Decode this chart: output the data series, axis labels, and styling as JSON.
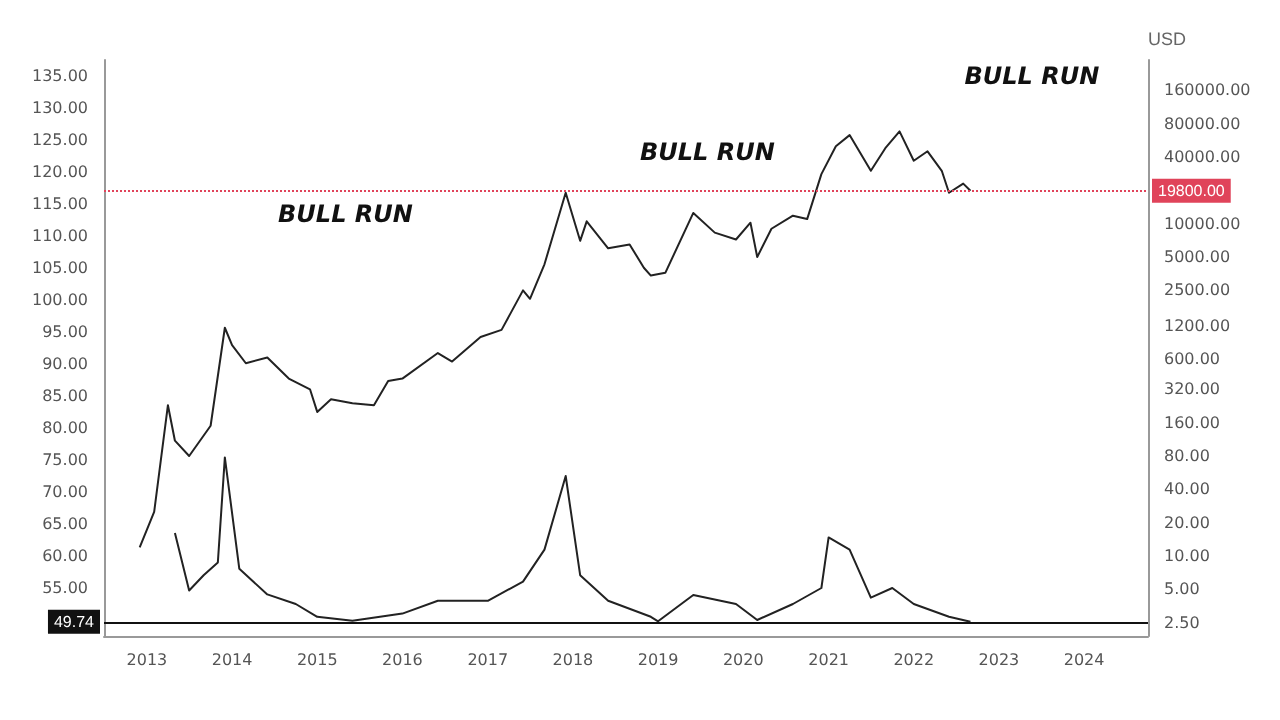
{
  "chart_data": {
    "type": "line",
    "y2label": "USD",
    "xlim": [
      "2012-07",
      "2024-10"
    ],
    "xticks": [
      "2013",
      "2014",
      "2015",
      "2016",
      "2017",
      "2018",
      "2019",
      "2020",
      "2021",
      "2022",
      "2023",
      "2024"
    ],
    "ylim": [
      47.5,
      137.5
    ],
    "yticks": [
      {
        "value": 55,
        "label": "55.00"
      },
      {
        "value": 60,
        "label": "60.00"
      },
      {
        "value": 65,
        "label": "65.00"
      },
      {
        "value": 70,
        "label": "70.00"
      },
      {
        "value": 75,
        "label": "75.00"
      },
      {
        "value": 80,
        "label": "80.00"
      },
      {
        "value": 85,
        "label": "85.00"
      },
      {
        "value": 90,
        "label": "90.00"
      },
      {
        "value": 95,
        "label": "95.00"
      },
      {
        "value": 100,
        "label": "100.00"
      },
      {
        "value": 105,
        "label": "105.00"
      },
      {
        "value": 110,
        "label": "110.00"
      },
      {
        "value": 115,
        "label": "115.00"
      },
      {
        "value": 120,
        "label": "120.00"
      },
      {
        "value": 125,
        "label": "125.00"
      },
      {
        "value": 130,
        "label": "130.00"
      },
      {
        "value": 135,
        "label": "135.00"
      }
    ],
    "log": "y2",
    "y2lim": [
      1.9,
      300000
    ],
    "y2ticks": [
      {
        "value": 2.5,
        "label": "2.50"
      },
      {
        "value": 5,
        "label": "5.00"
      },
      {
        "value": 10,
        "label": "10.00"
      },
      {
        "value": 20,
        "label": "20.00"
      },
      {
        "value": 40,
        "label": "40.00"
      },
      {
        "value": 80,
        "label": "80.00"
      },
      {
        "value": 160,
        "label": "160.00"
      },
      {
        "value": 320,
        "label": "320.00"
      },
      {
        "value": 600,
        "label": "600.00"
      },
      {
        "value": 1200,
        "label": "1200.00"
      },
      {
        "value": 2500,
        "label": "2500.00"
      },
      {
        "value": 5000,
        "label": "5000.00"
      },
      {
        "value": 10000,
        "label": "10000.00"
      },
      {
        "value": 40000,
        "label": "40000.00"
      },
      {
        "value": 80000,
        "label": "80000.00"
      },
      {
        "value": 160000,
        "label": "160000.00"
      }
    ],
    "grid": false,
    "marker": "none",
    "line_style": "solid",
    "series": [
      {
        "color": "#222222",
        "axis": "y2",
        "x": [
          "2012-12",
          "2013-02",
          "2013-04",
          "2013-05",
          "2013-07",
          "2013-10",
          "2013-12",
          "2014-01",
          "2014-03",
          "2014-06",
          "2014-09",
          "2014-12",
          "2015-01",
          "2015-03",
          "2015-06",
          "2015-09",
          "2015-11",
          "2016-01",
          "2016-06",
          "2016-08",
          "2016-12",
          "2017-03",
          "2017-06",
          "2017-07",
          "2017-09",
          "2017-12",
          "2018-02",
          "2018-03",
          "2018-06",
          "2018-09",
          "2018-11",
          "2018-12",
          "2019-02",
          "2019-06",
          "2019-09",
          "2019-12",
          "2020-02",
          "2020-03",
          "2020-05",
          "2020-08",
          "2020-10",
          "2020-12",
          "2021-02",
          "2021-04",
          "2021-07",
          "2021-09",
          "2021-11",
          "2022-01",
          "2022-03",
          "2022-05",
          "2022-06",
          "2022-08",
          "2022-09"
        ],
        "values": [
          12,
          25,
          230,
          110,
          80,
          150,
          1150,
          800,
          550,
          620,
          400,
          320,
          200,
          260,
          240,
          230,
          380,
          400,
          680,
          570,
          950,
          1100,
          2500,
          2100,
          4300,
          19000,
          7000,
          10500,
          6000,
          6500,
          4000,
          3400,
          3600,
          12500,
          8300,
          7200,
          10200,
          5000,
          9000,
          11800,
          11000,
          28000,
          50000,
          63000,
          30000,
          48000,
          68000,
          37000,
          45000,
          30000,
          19000,
          23000,
          19800
        ]
      },
      {
        "color": "#222222",
        "axis": "y",
        "x": [
          "2013-05",
          "2013-07",
          "2013-09",
          "2013-11",
          "2013-12",
          "2014-02",
          "2014-06",
          "2014-10",
          "2015-01",
          "2015-06",
          "2016-01",
          "2016-06",
          "2017-01",
          "2017-06",
          "2017-09",
          "2017-12",
          "2018-02",
          "2018-06",
          "2018-12",
          "2019-01",
          "2019-06",
          "2019-12",
          "2020-03",
          "2020-08",
          "2020-12",
          "2021-01",
          "2021-04",
          "2021-07",
          "2021-10",
          "2022-01",
          "2022-06",
          "2022-09"
        ],
        "values": [
          63.6,
          54.6,
          57,
          59,
          75.4,
          58,
          54,
          52.5,
          50.5,
          49.9,
          51,
          53,
          53,
          56,
          61,
          72.5,
          57,
          53,
          50.5,
          49.8,
          53.9,
          52.5,
          50,
          52.5,
          55,
          62.9,
          61,
          53.5,
          55,
          52.5,
          50.5,
          49.74
        ]
      }
    ],
    "ref_lines": [
      {
        "axis": "y",
        "value": 49.74,
        "label": "49.74",
        "color": "#111111"
      },
      {
        "axis": "y2",
        "value": 19800,
        "label": "19800.00",
        "color": "#e0435a"
      }
    ],
    "annotations": [
      "BULL RUN",
      "BULL RUN",
      "BULL RUN"
    ]
  }
}
